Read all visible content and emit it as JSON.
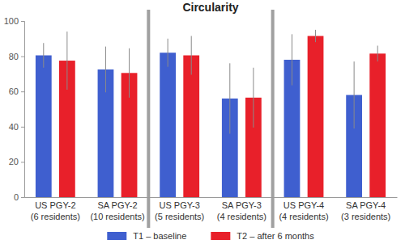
{
  "chart_data": {
    "type": "bar",
    "title": "Circularity",
    "categories": [
      "US PGY-2\n(6 residents)",
      "SA PGY-2\n(10 residents)",
      "US PGY-3\n(5 residents)",
      "SA PGY-3\n(4 residents)",
      "US PGY-4\n(4 residents)",
      "SA PGY-4\n(3 residents)"
    ],
    "series": [
      {
        "name": "T1 – baseline",
        "color": "#3f5fcf",
        "values": [
          80.5,
          72.5,
          82,
          56,
          78,
          58
        ],
        "errors": [
          7,
          13,
          8,
          20,
          14.5,
          19
        ]
      },
      {
        "name": "T2 – after 6 months",
        "color": "#e8202a",
        "values": [
          77.5,
          70.5,
          80.5,
          56.5,
          91.5,
          81.5
        ],
        "errors": [
          16.5,
          14,
          11,
          17,
          3.5,
          4.5
        ]
      }
    ],
    "ylim": [
      0,
      100
    ],
    "yticks": [
      0,
      20,
      40,
      60,
      80,
      100
    ],
    "grid": false,
    "legend": "bottom"
  }
}
